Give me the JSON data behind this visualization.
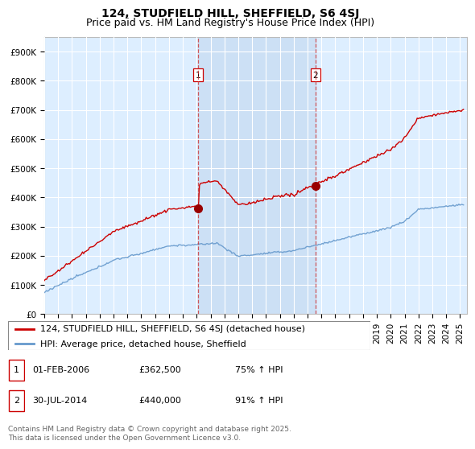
{
  "title": "124, STUDFIELD HILL, SHEFFIELD, S6 4SJ",
  "subtitle": "Price paid vs. HM Land Registry's House Price Index (HPI)",
  "ylabel_ticks": [
    "£0",
    "£100K",
    "£200K",
    "£300K",
    "£400K",
    "£500K",
    "£600K",
    "£700K",
    "£800K",
    "£900K"
  ],
  "ytick_values": [
    0,
    100000,
    200000,
    300000,
    400000,
    500000,
    600000,
    700000,
    800000,
    900000
  ],
  "ylim": [
    0,
    950000
  ],
  "xlim_start": 1995.0,
  "xlim_end": 2025.5,
  "background_color": "#ffffff",
  "plot_bg_color": "#ddeeff",
  "grid_color": "#ffffff",
  "sale1_x": 2006.08,
  "sale1_y": 362500,
  "sale2_x": 2014.58,
  "sale2_y": 440000,
  "sale_color": "#cc0000",
  "hpi_color": "#6699cc",
  "vline_color": "#cc3333",
  "span_color": "#cce0f5",
  "legend_label1": "124, STUDFIELD HILL, SHEFFIELD, S6 4SJ (detached house)",
  "legend_label2": "HPI: Average price, detached house, Sheffield",
  "table_row1": [
    "1",
    "01-FEB-2006",
    "£362,500",
    "75% ↑ HPI"
  ],
  "table_row2": [
    "2",
    "30-JUL-2014",
    "£440,000",
    "91% ↑ HPI"
  ],
  "footnote": "Contains HM Land Registry data © Crown copyright and database right 2025.\nThis data is licensed under the Open Government Licence v3.0.",
  "title_fontsize": 10,
  "subtitle_fontsize": 9,
  "tick_fontsize": 7.5,
  "legend_fontsize": 8,
  "table_fontsize": 8,
  "footnote_fontsize": 6.5
}
